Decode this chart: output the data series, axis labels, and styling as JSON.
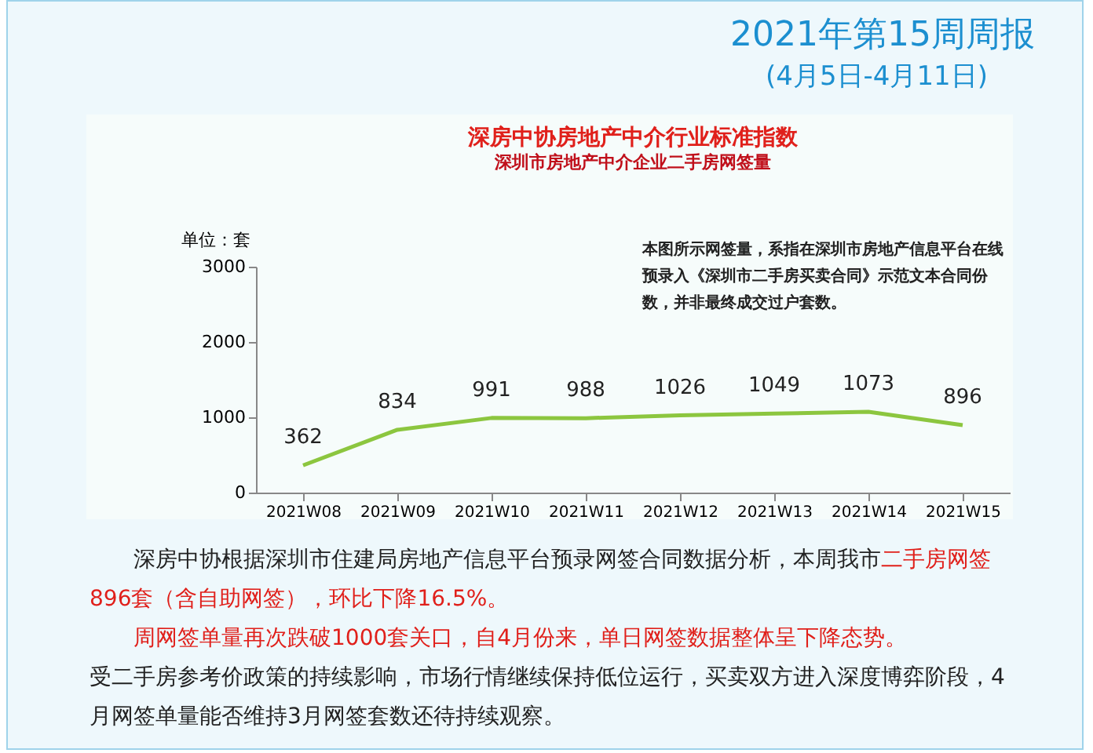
{
  "chart_data": {
    "type": "line",
    "title": "深房中协房地产中介行业标准指数",
    "subtitle": "深圳市房地产中介企业二手房网签量",
    "ylabel": "单位：套",
    "categories": [
      "2021W08",
      "2021W09",
      "2021W10",
      "2021W11",
      "2021W12",
      "2021W13",
      "2021W14",
      "2021W15"
    ],
    "series": [
      {
        "color": "#8cc63f",
        "values": [
          362,
          834,
          991,
          988,
          1026,
          1049,
          1073,
          896
        ]
      }
    ],
    "ylim": [
      0,
      3000
    ],
    "yticks": [
      0,
      1000,
      2000,
      3000
    ],
    "data_labels": true,
    "grid": false,
    "legend": false,
    "marker": "none",
    "line_style": "solid",
    "annotations": [
      "2021年第15周周报",
      "(4月5日-4月11日)",
      "本图所示网签量，系指在深圳市房地产信息平台在线预录入《深圳市二手房买卖合同》示范文本合同份数，并非最终成交过户套数。",
      "深房中协根据深圳市住建局房地产信息平台预录网签合同数据分析，本周我市",
      "二手房网签896套（含自助网签），环比下降16.5%。",
      "周网签单量再次跌破1000套关口，自4月份来，单日网签数据整体呈下降态势。",
      "受二手房参考价政策的持续影响，市场行情继续保持低位运行，买卖双方进入深度博弈阶段，4月网签单量能否维持3月网签套数还待持续观察。"
    ]
  }
}
